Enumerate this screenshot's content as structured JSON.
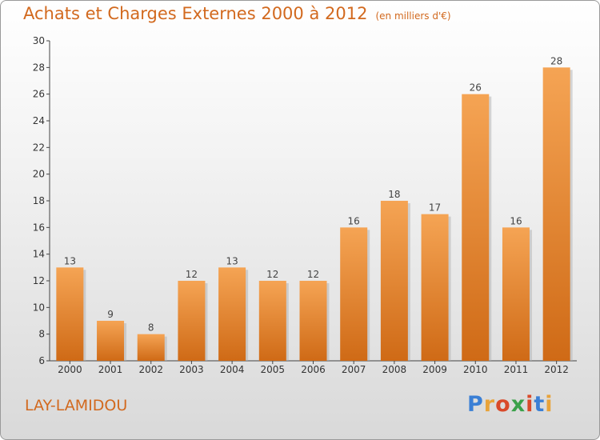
{
  "header": {
    "title": "Achats et Charges Externes 2000 à 2012",
    "unit": "(en milliers d'€)"
  },
  "footer": {
    "place": "LAY-LAMIDOU",
    "logo": "Proxiti"
  },
  "chart_data": {
    "type": "bar",
    "title": "Achats et Charges Externes 2000 à 2012",
    "subtitle": "(en milliers d'€)",
    "categories": [
      "2000",
      "2001",
      "2002",
      "2003",
      "2004",
      "2005",
      "2006",
      "2007",
      "2008",
      "2009",
      "2010",
      "2011",
      "2012"
    ],
    "values": [
      13,
      9,
      8,
      12,
      13,
      12,
      12,
      16,
      18,
      17,
      26,
      16,
      28
    ],
    "ylim": [
      6,
      30
    ],
    "yticks": [
      6,
      8,
      10,
      12,
      14,
      16,
      18,
      20,
      22,
      24,
      26,
      28,
      30
    ],
    "grid": false,
    "bar_color": "#f0963c"
  }
}
